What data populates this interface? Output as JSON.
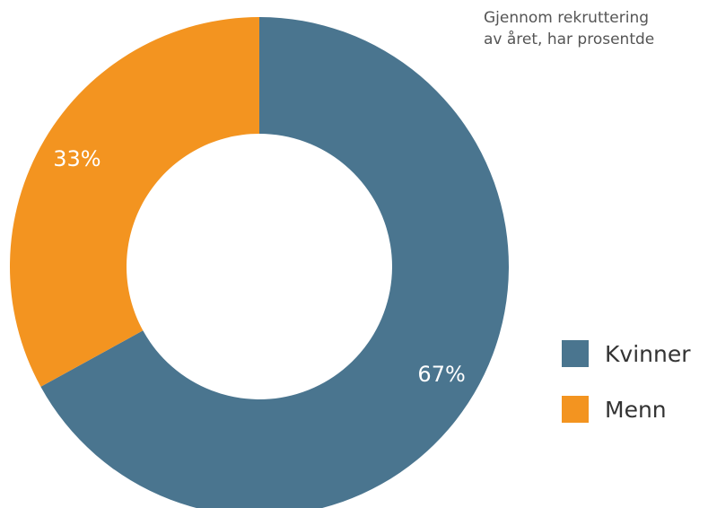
{
  "caption": {
    "line1": "Gjennom rekruttering",
    "line2": "av året, har prosentde"
  },
  "chart_data": {
    "type": "pie",
    "style": "donut",
    "categories": [
      "Kvinner",
      "Menn"
    ],
    "values": [
      67,
      33
    ],
    "labels": [
      "67%",
      "33%"
    ],
    "colors": [
      "#4a758f",
      "#f39420"
    ],
    "label_color": "#ffffff",
    "legend_position": "right"
  }
}
